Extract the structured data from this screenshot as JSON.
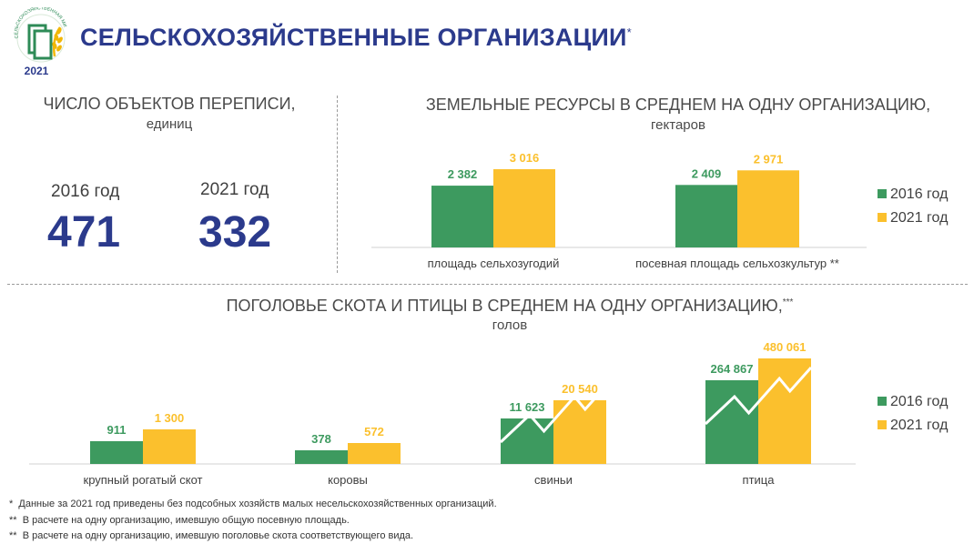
{
  "header": {
    "title": "СЕЛЬСКОХОЗЯЙСТВЕННЫЕ ОРГАНИЗАЦИИ",
    "title_mark": "*",
    "logo_text": "СЕЛЬСКОХОЗЯЙСТВЕННАЯ МИКРОПЕРЕПИСЬ",
    "logo_year": "2021"
  },
  "objects": {
    "heading": "ЧИСЛО ОБЪЕКТОВ ПЕРЕПИСИ,",
    "unit": "единиц",
    "items": [
      {
        "year": "2016 год",
        "value": "471"
      },
      {
        "year": "2021 год",
        "value": "332"
      }
    ]
  },
  "land": {
    "heading": "ЗЕМЕЛЬНЫЕ РЕСУРСЫ В СРЕДНЕМ НА ОДНУ ОРГАНИЗАЦИЮ,",
    "unit": "гектаров",
    "legend": [
      "2016 год",
      "2021 год"
    ]
  },
  "livestock": {
    "heading": "ПОГОЛОВЬЕ СКОТА И ПТИЦЫ В СРЕДНЕМ НА ОДНУ ОРГАНИЗАЦИЮ,",
    "heading_mark": "***",
    "unit": "голов",
    "legend": [
      "2016 год",
      "2021 год"
    ]
  },
  "colors": {
    "y2016": "#3d9a5f",
    "y2021": "#fbc02d",
    "title": "#2b3a8c"
  },
  "chart_data": [
    {
      "type": "bar",
      "title": "ЗЕМЕЛЬНЫЕ РЕСУРСЫ В СРЕДНЕМ НА ОДНУ ОРГАНИЗАЦИЮ, гектаров",
      "categories": [
        "площадь сельхозугодий",
        "посевная площадь сельхозкультур **"
      ],
      "series": [
        {
          "name": "2016 год",
          "values": [
            2382,
            2409
          ],
          "labels": [
            "2 382",
            "2 409"
          ]
        },
        {
          "name": "2021 год",
          "values": [
            3016,
            2971
          ],
          "labels": [
            "3 016",
            "2 971"
          ]
        }
      ],
      "ylim": [
        0,
        3016
      ]
    },
    {
      "type": "bar",
      "title": "ПОГОЛОВЬЕ СКОТА И ПТИЦЫ В СРЕДНЕМ НА ОДНУ ОРГАНИЗАЦИЮ, голов",
      "categories": [
        "крупный рогатый скот",
        "коровы",
        "свиньи",
        "птица"
      ],
      "series": [
        {
          "name": "2016 год",
          "values": [
            911,
            378,
            11623,
            264867
          ],
          "labels": [
            "911",
            "378",
            "11 623",
            "264 867"
          ]
        },
        {
          "name": "2021 год",
          "values": [
            1300,
            572,
            20540,
            480061
          ],
          "labels": [
            "1 300",
            "572",
            "20 540",
            "480 061"
          ]
        }
      ],
      "note": "broken scale: trend-line marks on pig and poultry bars"
    }
  ],
  "footnotes": [
    {
      "mark": "*",
      "text": "Данные за 2021 год приведены без подсобных хозяйств малых несельскохозяйственных организаций."
    },
    {
      "mark": "**",
      "text": "В расчете на одну организацию, имевшую общую посевную площадь."
    },
    {
      "mark": "**",
      "text": "В расчете на одну организацию, имевшую поголовье скота соответствующего вида."
    }
  ]
}
